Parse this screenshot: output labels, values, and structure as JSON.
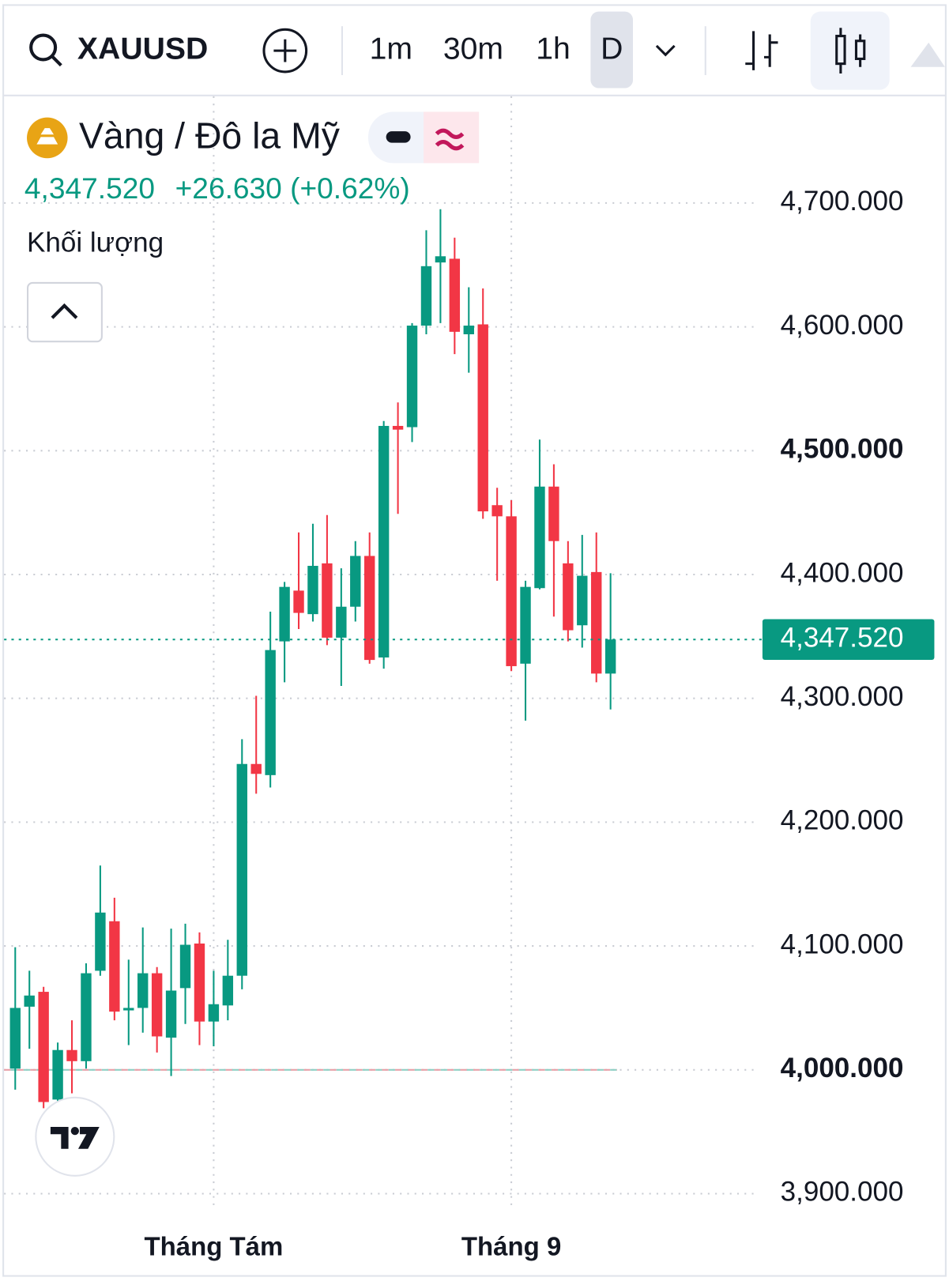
{
  "toolbar": {
    "symbol": "XAUUSD",
    "intervals": [
      "1m",
      "30m",
      "1h",
      "D"
    ]
  },
  "legend": {
    "name": "Vàng / Đô la Mỹ",
    "price": "4,347.520",
    "change": "+26.630 (+0.62%)",
    "volume": "Khối lượng"
  },
  "chart_data": {
    "type": "candlestick",
    "categories": [
      null,
      null,
      null,
      null,
      null,
      null,
      null,
      null,
      null,
      null,
      null,
      null,
      null,
      null,
      "Tháng Tám",
      null,
      null,
      null,
      null,
      null,
      null,
      null,
      null,
      null,
      null,
      null,
      null,
      null,
      null,
      null,
      null,
      null,
      null,
      null,
      null,
      "Tháng 9",
      null,
      null,
      null,
      null,
      null,
      null,
      null
    ],
    "open": [
      4001,
      4051,
      4063,
      3976,
      4016,
      4007,
      4080,
      4120,
      4048,
      4050,
      4078,
      4026,
      4066,
      4102,
      4039,
      4052,
      4076,
      4247,
      4238,
      4346,
      4387,
      4368,
      4409,
      4349,
      4374,
      4415,
      4333,
      4520,
      4519,
      4601,
      4652,
      4655,
      4594,
      4602,
      4456,
      4447,
      4328,
      4389,
      4471,
      4409,
      4359,
      4402,
      4320
    ],
    "high": [
      4099,
      4080,
      4067,
      4022,
      4040,
      4086,
      4165,
      4139,
      4089,
      4115,
      4083,
      4114,
      4118,
      4111,
      4080,
      4105,
      4267,
      4302,
      4370,
      4394,
      4434,
      4441,
      4448,
      4405,
      4427,
      4434,
      4524,
      4539,
      4603,
      4678,
      4695,
      4672,
      4632,
      4631,
      4470,
      4460,
      4395,
      4509,
      4489,
      4427,
      4432,
      4434,
      4401
    ],
    "low": [
      3984,
      4017,
      3969,
      3974,
      3981,
      4001,
      4076,
      4040,
      4020,
      4030,
      4014,
      3995,
      4037,
      4020,
      4019,
      4040,
      4065,
      4223,
      4228,
      4313,
      4356,
      4362,
      4343,
      4310,
      4362,
      4328,
      4324,
      4449,
      4507,
      4594,
      4603,
      4578,
      4563,
      4445,
      4395,
      4322,
      4282,
      4388,
      4366,
      4346,
      4341,
      4313,
      4291
    ],
    "close": [
      4050,
      4060,
      3974,
      4016,
      4007,
      4078,
      4127,
      4047,
      4050,
      4078,
      4027,
      4064,
      4101,
      4039,
      4053,
      4076,
      4247,
      4239,
      4339,
      4390,
      4369,
      4407,
      4349,
      4374,
      4415,
      4331,
      4520,
      4517,
      4601,
      4649,
      4657,
      4596,
      4601,
      4451,
      4447,
      4326,
      4390,
      4471,
      4427,
      4355,
      4399,
      4320,
      4347.52
    ],
    "up_color": "#089981",
    "down_color": "#f23645",
    "ylim": [
      3880,
      4790
    ],
    "yticks": [
      {
        "value": 3900,
        "label": "3,900.000"
      },
      {
        "value": 4000,
        "label": "4,000.000"
      },
      {
        "value": 4100,
        "label": "4,100.000"
      },
      {
        "value": 4200,
        "label": "4,200.000"
      },
      {
        "value": 4300,
        "label": "4,300.000"
      },
      {
        "value": 4400,
        "label": "4,400.000"
      },
      {
        "value": 4500,
        "label": "4,500.000"
      },
      {
        "value": 4600,
        "label": "4,600.000"
      },
      {
        "value": 4700,
        "label": "4,700.000"
      }
    ],
    "last_price": {
      "value": 4347.52,
      "label": "4,347.520"
    },
    "baseline": 4000,
    "grid": true
  }
}
